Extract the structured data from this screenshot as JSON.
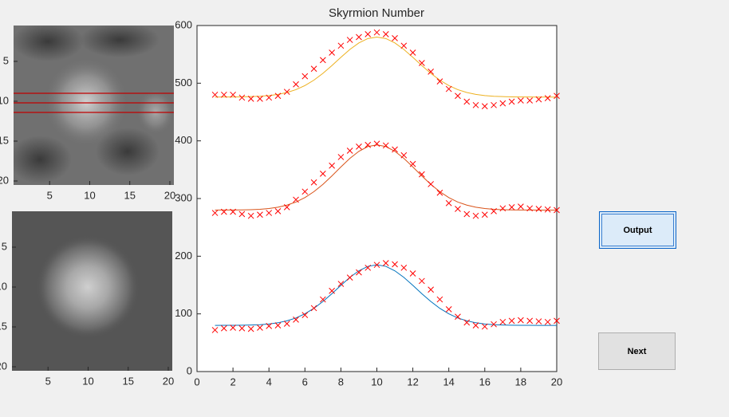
{
  "chart_data": [
    {
      "type": "image",
      "xlim": [
        0.5,
        20.5
      ],
      "ylim": [
        0.5,
        20.5
      ],
      "y_reversed": true,
      "xticks": [
        5,
        10,
        15,
        20
      ],
      "yticks": [
        5,
        10,
        15,
        20
      ]
    },
    {
      "type": "image",
      "xlim": [
        0.5,
        20.5
      ],
      "ylim": [
        0.5,
        20.5
      ],
      "y_reversed": true,
      "xticks": [
        5,
        10,
        15,
        20
      ],
      "yticks": [
        5,
        10,
        15,
        20
      ]
    },
    {
      "type": "line",
      "title": "Skyrmion Number",
      "xlim": [
        0,
        20
      ],
      "ylim": [
        0,
        600
      ],
      "xticks": [
        0,
        2,
        4,
        6,
        8,
        10,
        12,
        14,
        16,
        18,
        20
      ],
      "yticks": [
        0,
        100,
        200,
        300,
        400,
        500,
        600
      ],
      "x": [
        1,
        1.5,
        2,
        2.5,
        3,
        3.5,
        4,
        4.5,
        5,
        5.5,
        6,
        6.5,
        7,
        7.5,
        8,
        8.5,
        9,
        9.5,
        10,
        10.5,
        11,
        11.5,
        12,
        12.5,
        13,
        13.5,
        14,
        14.5,
        15,
        15.5,
        16,
        16.5,
        17,
        17.5,
        18,
        18.5,
        19,
        19.5,
        20
      ],
      "series": [
        {
          "style": "line",
          "color": "#edb120",
          "values": [
            476,
            476.1,
            476.1,
            476.3,
            476.7,
            477.3,
            478.5,
            480.6,
            483.9,
            488.8,
            495.9,
            505.3,
            517.1,
            530.5,
            544.8,
            558.5,
            569.8,
            577.4,
            580,
            577.4,
            569.8,
            558.5,
            544.8,
            530.5,
            517.1,
            505.3,
            495.9,
            488.8,
            483.9,
            480.6,
            478.5,
            477.3,
            476.7,
            476.3,
            476.1,
            476.1,
            476,
            476,
            476
          ]
        },
        {
          "style": "line",
          "color": "#d95319",
          "values": [
            280,
            280.1,
            280.1,
            280.3,
            280.7,
            281.4,
            282.7,
            285,
            288.6,
            293.9,
            301.6,
            311.9,
            324.6,
            339.2,
            354.8,
            369.6,
            381.9,
            390.2,
            393,
            390.2,
            381.9,
            369.6,
            354.8,
            339.2,
            324.6,
            311.9,
            301.6,
            293.9,
            288.6,
            285,
            282.7,
            281.4,
            280.7,
            280.3,
            280.1,
            280.1,
            280,
            280,
            280
          ]
        },
        {
          "style": "line",
          "color": "#0072bd",
          "values": [
            80,
            80.1,
            80.1,
            80.3,
            80.7,
            81.3,
            82.5,
            84.6,
            88,
            92.9,
            100.1,
            109.6,
            121.5,
            135,
            149.5,
            163.3,
            174.7,
            182.4,
            185,
            182.4,
            174.7,
            163.3,
            149.5,
            135,
            121.5,
            109.6,
            100.1,
            92.9,
            88,
            84.6,
            82.5,
            81.3,
            80.7,
            80.3,
            80.1,
            80.1,
            80,
            80,
            80
          ]
        },
        {
          "style": "marker",
          "color": "#ff0000",
          "values": [
            480,
            480,
            480,
            475,
            473,
            473,
            475,
            478,
            485,
            498,
            512,
            525,
            540,
            553,
            565,
            575,
            580,
            585,
            588,
            585,
            578,
            565,
            553,
            535,
            520,
            503,
            490,
            478,
            468,
            462,
            460,
            462,
            465,
            468,
            470,
            470,
            472,
            474,
            478
          ]
        },
        {
          "style": "marker",
          "color": "#ff0000",
          "values": [
            275,
            277,
            277,
            273,
            270,
            272,
            275,
            278,
            285,
            298,
            312,
            328,
            343,
            357,
            372,
            383,
            390,
            393,
            395,
            392,
            385,
            375,
            360,
            342,
            325,
            310,
            292,
            282,
            273,
            270,
            272,
            278,
            283,
            285,
            286,
            283,
            282,
            281,
            280
          ]
        },
        {
          "style": "marker",
          "color": "#ff0000",
          "values": [
            72,
            75,
            76,
            75,
            74,
            76,
            79,
            80,
            83,
            90,
            98,
            110,
            125,
            140,
            152,
            163,
            172,
            180,
            185,
            188,
            186,
            180,
            170,
            157,
            142,
            125,
            108,
            95,
            85,
            80,
            78,
            82,
            86,
            88,
            89,
            88,
            87,
            86,
            88
          ]
        }
      ]
    }
  ],
  "buttons": {
    "output": "Output",
    "next": "Next"
  }
}
